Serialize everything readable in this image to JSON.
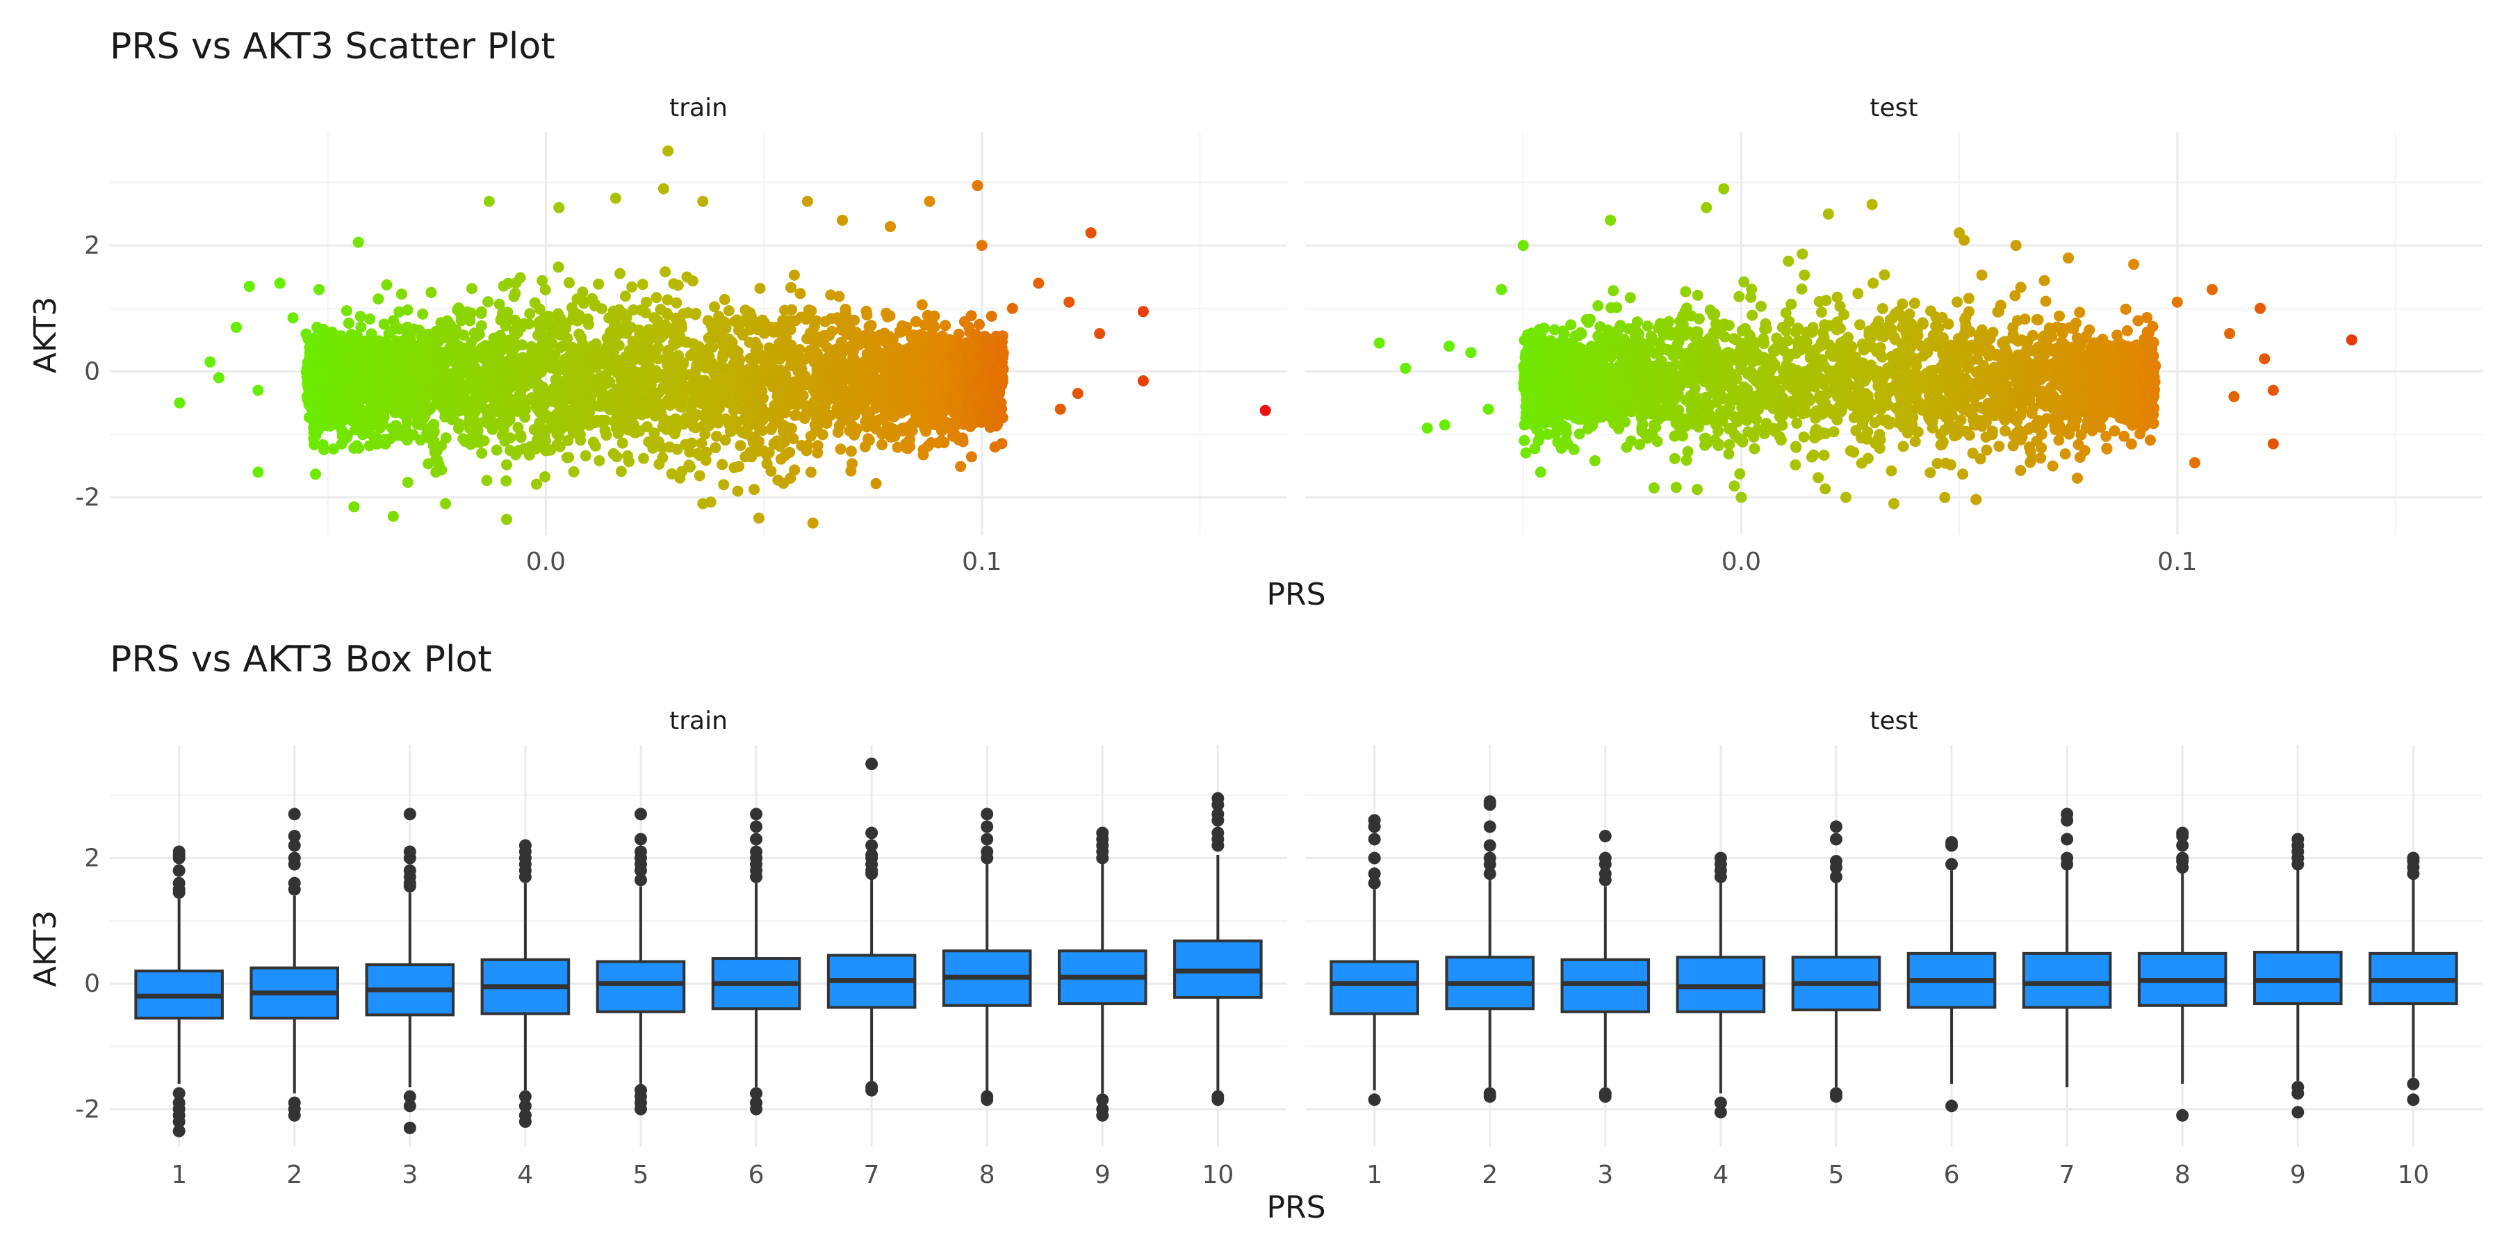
{
  "chart_data": [
    {
      "type": "scatter",
      "title": "PRS vs AKT3 Scatter Plot",
      "xlabel": "PRS",
      "ylabel": "AKT3",
      "xlim": [
        -0.1,
        0.17
      ],
      "ylim": [
        -2.6,
        3.8
      ],
      "x_ticks": [
        0.0,
        0.1
      ],
      "x_tick_labels": [
        "0.0",
        "0.1"
      ],
      "y_ticks": [
        -2,
        0,
        2
      ],
      "y_tick_labels": [
        "-2",
        "0",
        "2"
      ],
      "grid": true,
      "color_scale": {
        "by": "PRS",
        "low": "#66ee00",
        "mid": "#b8b800",
        "high_mid": "#e08800",
        "high": "#ee1111"
      },
      "panels": [
        {
          "label": "train",
          "cloud": {
            "n": 4200,
            "x_min": -0.055,
            "x_max": 0.105,
            "y_center": -0.15,
            "y_sd": 0.62
          },
          "points": [
            {
              "x": -0.084,
              "y": -0.5
            },
            {
              "x": -0.077,
              "y": 0.15
            },
            {
              "x": -0.075,
              "y": -0.1
            },
            {
              "x": -0.071,
              "y": 0.7
            },
            {
              "x": -0.068,
              "y": 1.35
            },
            {
              "x": -0.066,
              "y": -0.3
            },
            {
              "x": -0.066,
              "y": -1.6
            },
            {
              "x": -0.061,
              "y": 1.4
            },
            {
              "x": -0.058,
              "y": 0.85
            },
            {
              "x": -0.052,
              "y": 1.3
            },
            {
              "x": -0.044,
              "y": -2.15
            },
            {
              "x": -0.043,
              "y": 2.05
            },
            {
              "x": -0.035,
              "y": -2.3
            },
            {
              "x": -0.023,
              "y": -2.1
            },
            {
              "x": -0.013,
              "y": 2.7
            },
            {
              "x": -0.009,
              "y": -2.35
            },
            {
              "x": 0.003,
              "y": 2.6
            },
            {
              "x": 0.016,
              "y": 2.75
            },
            {
              "x": 0.027,
              "y": 2.9
            },
            {
              "x": 0.028,
              "y": 3.5
            },
            {
              "x": 0.036,
              "y": 2.7
            },
            {
              "x": 0.036,
              "y": -2.1
            },
            {
              "x": 0.044,
              "y": -1.9
            },
            {
              "x": 0.06,
              "y": 2.7
            },
            {
              "x": 0.068,
              "y": 2.4
            },
            {
              "x": 0.079,
              "y": 2.3
            },
            {
              "x": 0.088,
              "y": 2.7
            },
            {
              "x": 0.099,
              "y": 2.95
            },
            {
              "x": 0.1,
              "y": 2.0
            },
            {
              "x": 0.103,
              "y": -1.2
            },
            {
              "x": 0.107,
              "y": 1.0
            },
            {
              "x": 0.113,
              "y": 1.4
            },
            {
              "x": 0.118,
              "y": -0.6
            },
            {
              "x": 0.12,
              "y": 1.1
            },
            {
              "x": 0.122,
              "y": -0.35
            },
            {
              "x": 0.125,
              "y": 2.2
            },
            {
              "x": 0.127,
              "y": 0.6
            },
            {
              "x": 0.137,
              "y": 0.95
            },
            {
              "x": 0.137,
              "y": -0.15
            },
            {
              "x": 0.165,
              "y": -0.62
            }
          ]
        },
        {
          "label": "test",
          "cloud": {
            "n": 3000,
            "x_min": -0.05,
            "x_max": 0.095,
            "y_center": -0.15,
            "y_sd": 0.6
          },
          "points": [
            {
              "x": -0.083,
              "y": 0.45
            },
            {
              "x": -0.077,
              "y": 0.05
            },
            {
              "x": -0.072,
              "y": -0.9
            },
            {
              "x": -0.068,
              "y": -0.85
            },
            {
              "x": -0.067,
              "y": 0.4
            },
            {
              "x": -0.062,
              "y": 0.3
            },
            {
              "x": -0.058,
              "y": -0.6
            },
            {
              "x": -0.055,
              "y": 1.3
            },
            {
              "x": -0.05,
              "y": 2.0
            },
            {
              "x": -0.046,
              "y": -1.6
            },
            {
              "x": -0.03,
              "y": 2.4
            },
            {
              "x": -0.02,
              "y": -1.85
            },
            {
              "x": -0.008,
              "y": 2.6
            },
            {
              "x": -0.004,
              "y": 2.9
            },
            {
              "x": 0.0,
              "y": -2.0
            },
            {
              "x": 0.02,
              "y": 2.5
            },
            {
              "x": 0.024,
              "y": -2.0
            },
            {
              "x": 0.03,
              "y": 2.65
            },
            {
              "x": 0.035,
              "y": -2.1
            },
            {
              "x": 0.05,
              "y": 2.2
            },
            {
              "x": 0.063,
              "y": 2.0
            },
            {
              "x": 0.075,
              "y": 1.8
            },
            {
              "x": 0.09,
              "y": 1.7
            },
            {
              "x": 0.1,
              "y": 1.1
            },
            {
              "x": 0.104,
              "y": -1.45
            },
            {
              "x": 0.108,
              "y": 1.3
            },
            {
              "x": 0.112,
              "y": 0.6
            },
            {
              "x": 0.113,
              "y": -0.4
            },
            {
              "x": 0.119,
              "y": 1.0
            },
            {
              "x": 0.12,
              "y": 0.2
            },
            {
              "x": 0.122,
              "y": -0.3
            },
            {
              "x": 0.122,
              "y": -1.15
            },
            {
              "x": 0.14,
              "y": 0.5
            }
          ]
        }
      ]
    },
    {
      "type": "box",
      "title": "PRS vs AKT3 Box Plot",
      "xlabel": "PRS",
      "ylabel": "AKT3",
      "categories": [
        "1",
        "2",
        "3",
        "4",
        "5",
        "6",
        "7",
        "8",
        "9",
        "10"
      ],
      "ylim": [
        -2.6,
        3.8
      ],
      "y_ticks": [
        -2,
        0,
        2
      ],
      "y_tick_labels": [
        "-2",
        "0",
        "2"
      ],
      "grid": true,
      "box_fill": "#1e90ff",
      "box_stroke": "#333333",
      "panels": [
        {
          "label": "train",
          "boxes": [
            {
              "q1": -0.55,
              "median": -0.2,
              "q3": 0.2,
              "lower": -1.6,
              "upper": 1.35,
              "outliers": [
                -1.75,
                -1.9,
                -2.0,
                -2.1,
                -2.2,
                -2.35,
                1.45,
                1.5,
                1.6,
                1.8,
                2.0,
                2.05,
                2.1
              ]
            },
            {
              "q1": -0.55,
              "median": -0.15,
              "q3": 0.25,
              "lower": -1.75,
              "upper": 1.4,
              "outliers": [
                -1.9,
                -2.0,
                -2.1,
                1.5,
                1.6,
                1.9,
                2.0,
                2.2,
                2.35,
                2.7
              ]
            },
            {
              "q1": -0.5,
              "median": -0.1,
              "q3": 0.3,
              "lower": -1.65,
              "upper": 1.45,
              "outliers": [
                -1.8,
                -1.95,
                -2.3,
                1.55,
                1.6,
                1.7,
                1.8,
                2.0,
                2.1,
                2.7
              ]
            },
            {
              "q1": -0.48,
              "median": -0.05,
              "q3": 0.38,
              "lower": -1.7,
              "upper": 1.6,
              "outliers": [
                -1.8,
                -1.95,
                -2.1,
                -2.2,
                1.7,
                1.8,
                1.9,
                2.0,
                2.1,
                2.2
              ]
            },
            {
              "q1": -0.45,
              "median": 0.0,
              "q3": 0.35,
              "lower": -1.6,
              "upper": 1.55,
              "outliers": [
                -1.7,
                -1.8,
                -1.9,
                -2.0,
                1.65,
                1.8,
                1.9,
                2.0,
                2.1,
                2.3,
                2.7
              ]
            },
            {
              "q1": -0.4,
              "median": 0.0,
              "q3": 0.4,
              "lower": -1.65,
              "upper": 1.6,
              "outliers": [
                -1.75,
                -1.9,
                -2.0,
                1.7,
                1.8,
                1.9,
                2.0,
                2.1,
                2.3,
                2.5,
                2.7
              ]
            },
            {
              "q1": -0.38,
              "median": 0.05,
              "q3": 0.45,
              "lower": -1.6,
              "upper": 1.65,
              "outliers": [
                -1.65,
                -1.7,
                1.75,
                1.8,
                1.9,
                2.0,
                2.05,
                2.2,
                2.4,
                3.5
              ]
            },
            {
              "q1": -0.35,
              "median": 0.1,
              "q3": 0.52,
              "lower": -1.75,
              "upper": 1.9,
              "outliers": [
                -1.8,
                -1.85,
                2.0,
                2.1,
                2.3,
                2.5,
                2.7
              ]
            },
            {
              "q1": -0.32,
              "median": 0.1,
              "q3": 0.52,
              "lower": -1.75,
              "upper": 1.95,
              "outliers": [
                -1.85,
                -2.0,
                -2.1,
                2.0,
                2.1,
                2.2,
                2.3,
                2.4
              ]
            },
            {
              "q1": -0.22,
              "median": 0.2,
              "q3": 0.68,
              "lower": -1.7,
              "upper": 2.05,
              "outliers": [
                -1.8,
                -1.85,
                2.2,
                2.3,
                2.4,
                2.6,
                2.7,
                2.85,
                2.95
              ]
            }
          ]
        },
        {
          "label": "test",
          "boxes": [
            {
              "q1": -0.48,
              "median": 0.0,
              "q3": 0.35,
              "lower": -1.7,
              "upper": 1.5,
              "outliers": [
                -1.85,
                1.6,
                1.75,
                2.0,
                2.3,
                2.5,
                2.6
              ]
            },
            {
              "q1": -0.4,
              "median": 0.0,
              "q3": 0.42,
              "lower": -1.65,
              "upper": 1.65,
              "outliers": [
                -1.75,
                -1.8,
                1.75,
                1.9,
                2.0,
                2.2,
                2.5,
                2.85,
                2.9
              ]
            },
            {
              "q1": -0.45,
              "median": 0.0,
              "q3": 0.38,
              "lower": -1.65,
              "upper": 1.55,
              "outliers": [
                -1.75,
                -1.8,
                1.65,
                1.75,
                1.9,
                2.0,
                2.35
              ]
            },
            {
              "q1": -0.45,
              "median": -0.05,
              "q3": 0.42,
              "lower": -1.75,
              "upper": 1.65,
              "outliers": [
                -1.9,
                -2.05,
                1.7,
                1.8,
                1.9,
                2.0
              ]
            },
            {
              "q1": -0.42,
              "median": 0.0,
              "q3": 0.42,
              "lower": -1.65,
              "upper": 1.65,
              "outliers": [
                -1.75,
                -1.8,
                1.7,
                1.85,
                1.95,
                2.3,
                2.5
              ]
            },
            {
              "q1": -0.38,
              "median": 0.05,
              "q3": 0.48,
              "lower": -1.6,
              "upper": 1.8,
              "outliers": [
                -1.95,
                1.9,
                2.2,
                2.25
              ]
            },
            {
              "q1": -0.38,
              "median": 0.0,
              "q3": 0.48,
              "lower": -1.65,
              "upper": 1.85,
              "outliers": [
                1.9,
                2.0,
                2.3,
                2.6,
                2.7
              ]
            },
            {
              "q1": -0.35,
              "median": 0.05,
              "q3": 0.48,
              "lower": -1.6,
              "upper": 1.8,
              "outliers": [
                -2.1,
                1.85,
                1.95,
                2.0,
                2.2,
                2.35,
                2.4
              ]
            },
            {
              "q1": -0.32,
              "median": 0.05,
              "q3": 0.5,
              "lower": -1.55,
              "upper": 1.85,
              "outliers": [
                -1.65,
                -1.75,
                -2.05,
                1.9,
                2.0,
                2.1,
                2.2,
                2.3
              ]
            },
            {
              "q1": -0.32,
              "median": 0.05,
              "q3": 0.48,
              "lower": -1.5,
              "upper": 1.65,
              "outliers": [
                -1.6,
                -1.85,
                1.75,
                1.85,
                1.95,
                2.0
              ]
            }
          ]
        }
      ]
    }
  ]
}
